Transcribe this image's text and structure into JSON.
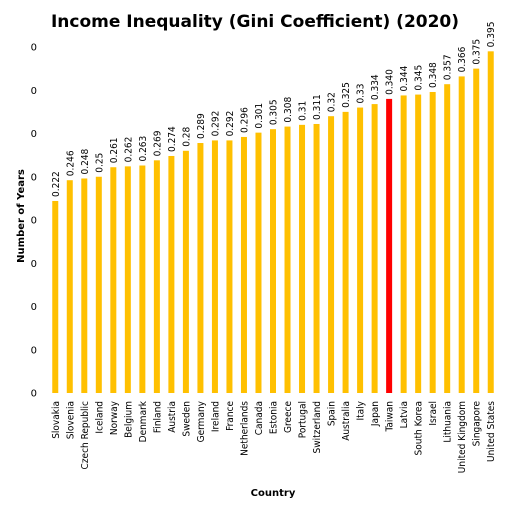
{
  "chart_data": {
    "type": "bar",
    "title": "Income Inequality (Gini Coefficient) (2020)",
    "xlabel": "Country",
    "ylabel": "Number of Years",
    "ylim": [
      0,
      0.4
    ],
    "y_tick_labels": [
      "0",
      "0",
      "0",
      "0",
      "0",
      "0",
      "0",
      "0",
      "0"
    ],
    "grid": false,
    "categories": [
      "Slovakia",
      "Slovenia",
      "Czech Republic",
      "Iceland",
      "Norway",
      "Belgium",
      "Denmark",
      "Finland",
      "Austria",
      "Sweden",
      "Germany",
      "Ireland",
      "France",
      "Netherlands",
      "Canada",
      "Estonia",
      "Greece",
      "Portugal",
      "Switzerland",
      "Spain",
      "Australia",
      "Italy",
      "Japan",
      "Taiwan",
      "Latvia",
      "South Korea",
      "Israel",
      "Lithuania",
      "United Kingdom",
      "Singapore",
      "United States"
    ],
    "values": [
      0.222,
      0.246,
      0.248,
      0.25,
      0.261,
      0.262,
      0.263,
      0.269,
      0.274,
      0.28,
      0.289,
      0.292,
      0.292,
      0.296,
      0.301,
      0.305,
      0.308,
      0.31,
      0.311,
      0.32,
      0.325,
      0.33,
      0.334,
      0.34,
      0.344,
      0.345,
      0.348,
      0.357,
      0.366,
      0.375,
      0.395
    ],
    "value_labels": [
      "0.222",
      "0.246",
      "0.248",
      "0.25",
      "0.261",
      "0.262",
      "0.263",
      "0.269",
      "0.274",
      "0.28",
      "0.289",
      "0.292",
      "0.292",
      "0.296",
      "0.301",
      "0.305",
      "0.308",
      "0.31",
      "0.311",
      "0.32",
      "0.325",
      "0.33",
      "0.334",
      "0.340",
      "0.344",
      "0.345",
      "0.348",
      "0.357",
      "0.366",
      "0.375",
      "0.395"
    ],
    "colors": {
      "default": "#FFC000",
      "highlight": "#FF0000"
    },
    "highlight_category": "Taiwan"
  }
}
